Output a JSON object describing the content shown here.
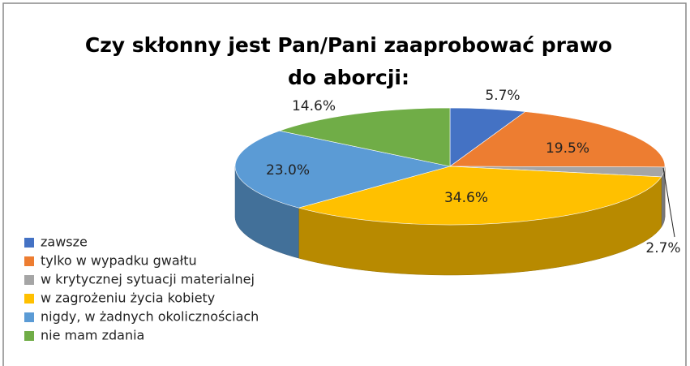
{
  "chart_data": {
    "type": "pie3d",
    "title": "Czy skłonny jest Pan/Pani zaaprobować prawo do aborcji:",
    "categories": [
      "zawsze",
      "tylko w wypadku gwałtu",
      "w krytycznej sytuacji materialnej",
      "w zagrożeniu życia kobiety",
      "nigdy, w żadnych okolicznościach",
      "nie mam zdania"
    ],
    "values": [
      5.7,
      19.5,
      2.7,
      34.6,
      23.0,
      14.6
    ],
    "value_labels": [
      "5.7%",
      "19.5%",
      "2.7%",
      "34.6%",
      "23.0%",
      "14.6%"
    ],
    "colors": [
      "#4472c4",
      "#ed7d31",
      "#a5a5a5",
      "#ffc000",
      "#5b9bd5",
      "#70ad47"
    ],
    "legend": "left"
  }
}
